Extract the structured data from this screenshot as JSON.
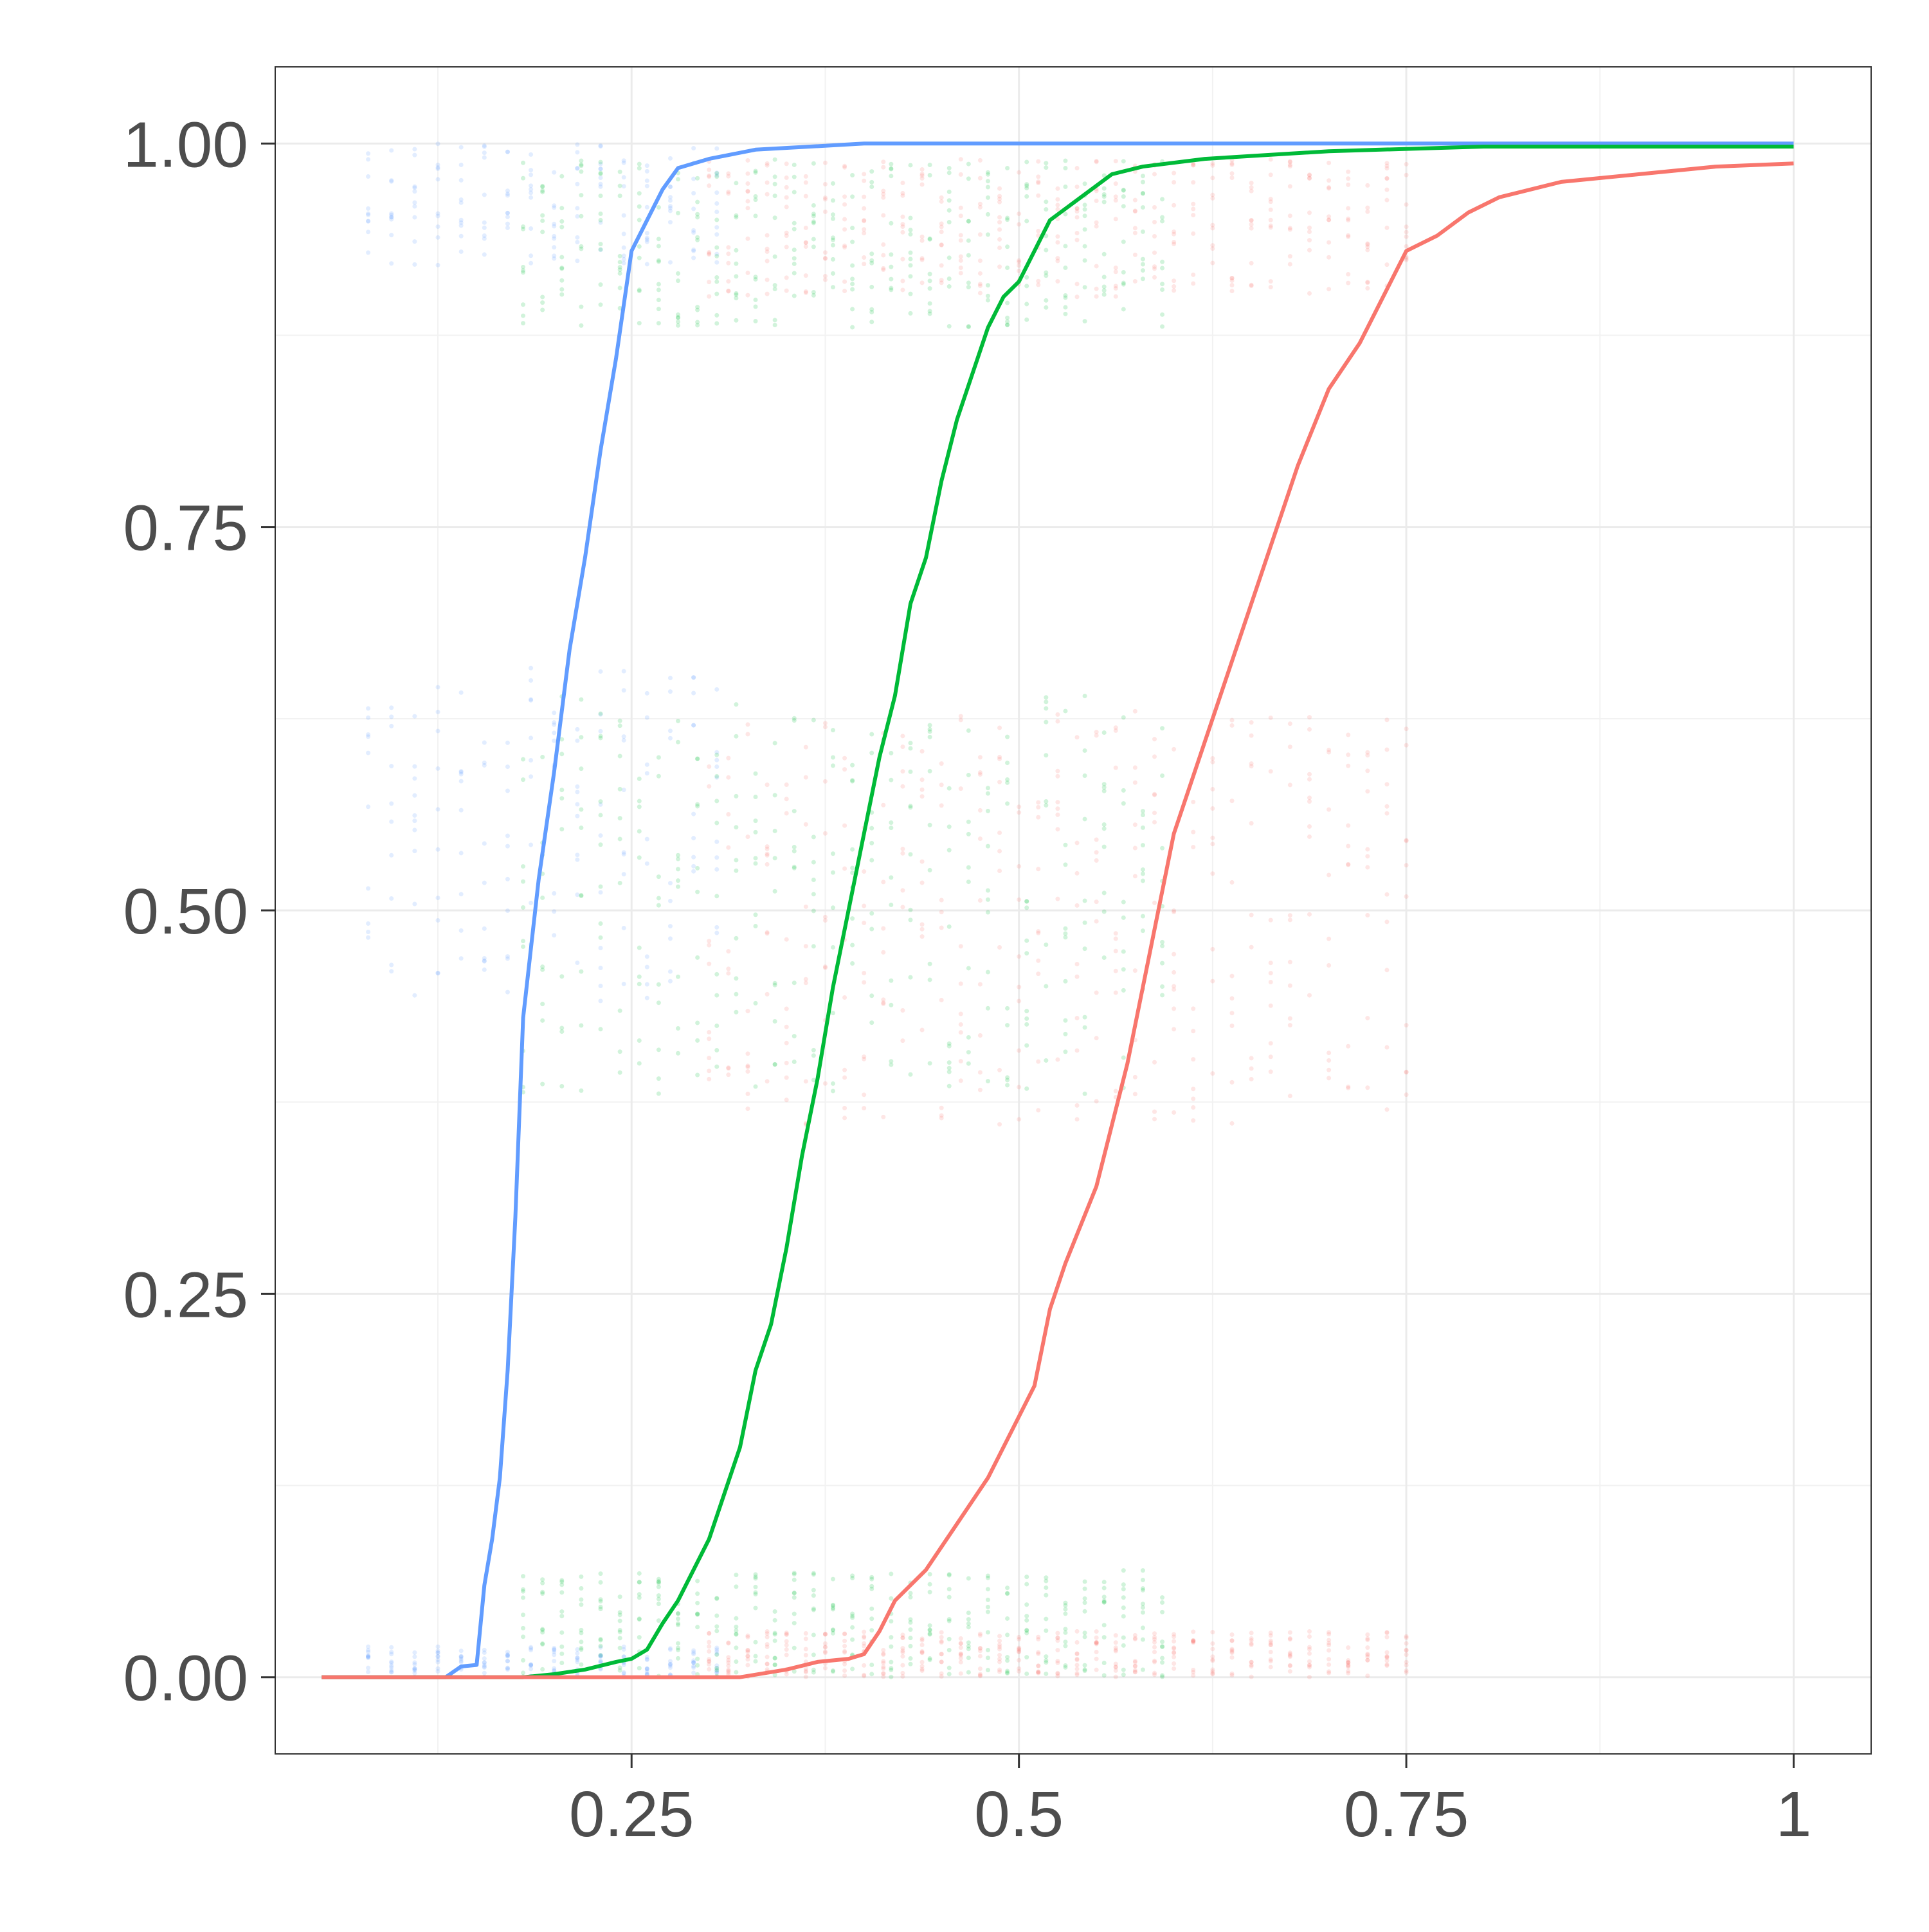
{
  "chart_data": {
    "type": "line",
    "title": "",
    "xlabel": "",
    "ylabel": "",
    "xlim": [
      0.02,
      1.05
    ],
    "ylim": [
      -0.05,
      1.05
    ],
    "grid": true,
    "legend": "none",
    "x_ticks": [
      {
        "value": 0.25,
        "label": "0.25"
      },
      {
        "value": 0.5,
        "label": "0.5"
      },
      {
        "value": 0.75,
        "label": "0.75"
      },
      {
        "value": 1.0,
        "label": "1"
      }
    ],
    "y_ticks": [
      {
        "value": 0.0,
        "label": "0.00"
      },
      {
        "value": 0.25,
        "label": "0.25"
      },
      {
        "value": 0.5,
        "label": "0.50"
      },
      {
        "value": 0.75,
        "label": "0.75"
      },
      {
        "value": 1.0,
        "label": "1.00"
      }
    ],
    "series": [
      {
        "color": "#619CFF",
        "points": [
          [
            0.05,
            0.0
          ],
          [
            0.13,
            0.0
          ],
          [
            0.14,
            0.007
          ],
          [
            0.15,
            0.008
          ],
          [
            0.155,
            0.06
          ],
          [
            0.16,
            0.09
          ],
          [
            0.165,
            0.13
          ],
          [
            0.17,
            0.2
          ],
          [
            0.175,
            0.3
          ],
          [
            0.18,
            0.43
          ],
          [
            0.19,
            0.52
          ],
          [
            0.2,
            0.59
          ],
          [
            0.21,
            0.67
          ],
          [
            0.22,
            0.73
          ],
          [
            0.23,
            0.8
          ],
          [
            0.24,
            0.86
          ],
          [
            0.25,
            0.93
          ],
          [
            0.26,
            0.95
          ],
          [
            0.27,
            0.97
          ],
          [
            0.28,
            0.984
          ],
          [
            0.3,
            0.99
          ],
          [
            0.33,
            0.996
          ],
          [
            0.4,
            1.0
          ],
          [
            1.0,
            1.0
          ]
        ],
        "scatter": {
          "x_start": 0.08,
          "x_end": 0.31,
          "x_step": 0.015,
          "bands": [
            {
              "lo": 0.0,
              "hi": 0.02
            },
            {
              "lo": 0.44,
              "hi": 0.66
            },
            {
              "lo": 0.92,
              "hi": 1.0
            }
          ]
        }
      },
      {
        "color": "#00BA38",
        "points": [
          [
            0.05,
            0.0
          ],
          [
            0.18,
            0.0
          ],
          [
            0.2,
            0.002
          ],
          [
            0.22,
            0.005
          ],
          [
            0.24,
            0.01
          ],
          [
            0.25,
            0.012
          ],
          [
            0.26,
            0.018
          ],
          [
            0.27,
            0.035
          ],
          [
            0.28,
            0.05
          ],
          [
            0.3,
            0.09
          ],
          [
            0.32,
            0.15
          ],
          [
            0.33,
            0.2
          ],
          [
            0.34,
            0.23
          ],
          [
            0.35,
            0.28
          ],
          [
            0.36,
            0.34
          ],
          [
            0.37,
            0.39
          ],
          [
            0.38,
            0.45
          ],
          [
            0.39,
            0.5
          ],
          [
            0.4,
            0.55
          ],
          [
            0.41,
            0.6
          ],
          [
            0.42,
            0.64
          ],
          [
            0.43,
            0.7
          ],
          [
            0.44,
            0.73
          ],
          [
            0.45,
            0.78
          ],
          [
            0.46,
            0.82
          ],
          [
            0.47,
            0.85
          ],
          [
            0.48,
            0.88
          ],
          [
            0.49,
            0.9
          ],
          [
            0.5,
            0.91
          ],
          [
            0.51,
            0.93
          ],
          [
            0.52,
            0.95
          ],
          [
            0.54,
            0.965
          ],
          [
            0.56,
            0.98
          ],
          [
            0.58,
            0.985
          ],
          [
            0.62,
            0.99
          ],
          [
            0.7,
            0.995
          ],
          [
            0.8,
            0.998
          ],
          [
            1.0,
            0.998
          ]
        ],
        "scatter": {
          "x_start": 0.18,
          "x_end": 0.6,
          "x_step": 0.0125,
          "bands": [
            {
              "lo": 0.0,
              "hi": 0.07
            },
            {
              "lo": 0.38,
              "hi": 0.64
            },
            {
              "lo": 0.88,
              "hi": 0.99
            }
          ]
        }
      },
      {
        "color": "#F8766D",
        "points": [
          [
            0.05,
            0.0
          ],
          [
            0.32,
            0.0
          ],
          [
            0.35,
            0.005
          ],
          [
            0.37,
            0.01
          ],
          [
            0.39,
            0.012
          ],
          [
            0.4,
            0.015
          ],
          [
            0.41,
            0.03
          ],
          [
            0.42,
            0.05
          ],
          [
            0.44,
            0.07
          ],
          [
            0.46,
            0.1
          ],
          [
            0.48,
            0.13
          ],
          [
            0.5,
            0.17
          ],
          [
            0.51,
            0.19
          ],
          [
            0.52,
            0.24
          ],
          [
            0.53,
            0.27
          ],
          [
            0.55,
            0.32
          ],
          [
            0.56,
            0.36
          ],
          [
            0.57,
            0.4
          ],
          [
            0.58,
            0.45
          ],
          [
            0.59,
            0.5
          ],
          [
            0.6,
            0.55
          ],
          [
            0.62,
            0.61
          ],
          [
            0.64,
            0.67
          ],
          [
            0.66,
            0.73
          ],
          [
            0.68,
            0.79
          ],
          [
            0.7,
            0.84
          ],
          [
            0.72,
            0.87
          ],
          [
            0.74,
            0.91
          ],
          [
            0.75,
            0.93
          ],
          [
            0.77,
            0.94
          ],
          [
            0.79,
            0.955
          ],
          [
            0.81,
            0.965
          ],
          [
            0.85,
            0.975
          ],
          [
            0.9,
            0.98
          ],
          [
            0.95,
            0.985
          ],
          [
            1.0,
            0.987
          ]
        ],
        "scatter": {
          "x_start": 0.3,
          "x_end": 0.75,
          "x_step": 0.0125,
          "bands": [
            {
              "lo": 0.0,
              "hi": 0.03
            },
            {
              "lo": 0.36,
              "hi": 0.63
            },
            {
              "lo": 0.9,
              "hi": 0.99
            }
          ]
        }
      }
    ]
  }
}
